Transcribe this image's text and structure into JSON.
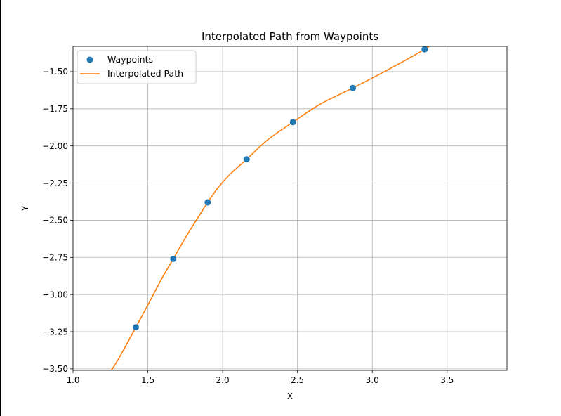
{
  "chart_data": {
    "type": "scatter+line",
    "title": "Interpolated Path from Waypoints",
    "xlabel": "X",
    "ylabel": "Y",
    "xlim": [
      1.0,
      3.9
    ],
    "ylim": [
      -3.51,
      -1.33
    ],
    "xticks": [
      1.0,
      1.5,
      2.0,
      2.5,
      3.0,
      3.5
    ],
    "xtick_labels": [
      "1.0",
      "1.5",
      "2.0",
      "2.5",
      "3.0",
      "3.5"
    ],
    "yticks": [
      -3.5,
      -3.25,
      -3.0,
      -2.75,
      -2.5,
      -2.25,
      -2.0,
      -1.75,
      -1.5
    ],
    "ytick_labels": [
      "−3.50",
      "−3.25",
      "−3.00",
      "−2.75",
      "−2.50",
      "−2.25",
      "−2.00",
      "−1.75",
      "−1.50"
    ],
    "grid": true,
    "legend_position": "top-left",
    "series": [
      {
        "name": "Waypoints",
        "kind": "scatter",
        "color": "#1f77b4",
        "x": [
          1.42,
          1.67,
          1.9,
          2.16,
          2.47,
          2.87,
          3.35
        ],
        "y": [
          -3.22,
          -2.76,
          -2.38,
          -2.09,
          -1.84,
          -1.61,
          -1.35
        ]
      },
      {
        "name": "Interpolated Path",
        "kind": "line",
        "color": "#ff7f0e",
        "x": [
          1.25,
          1.3,
          1.35,
          1.42,
          1.5,
          1.6,
          1.67,
          1.75,
          1.83,
          1.9,
          1.97,
          2.05,
          2.16,
          2.3,
          2.47,
          2.65,
          2.87,
          3.1,
          3.35,
          3.37
        ],
        "y": [
          -3.52,
          -3.44,
          -3.35,
          -3.22,
          -3.07,
          -2.88,
          -2.76,
          -2.62,
          -2.49,
          -2.38,
          -2.28,
          -2.19,
          -2.09,
          -1.96,
          -1.84,
          -1.72,
          -1.61,
          -1.49,
          -1.35,
          -1.33
        ]
      }
    ]
  }
}
